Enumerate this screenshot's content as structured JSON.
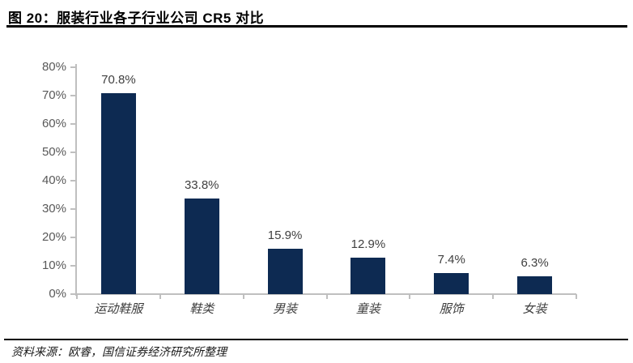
{
  "header": {
    "title": "图 20：服装行业各子行业公司 CR5 对比"
  },
  "footer": {
    "source": "资料来源：欧睿，国信证券经济研究所整理"
  },
  "chart_data": {
    "type": "bar",
    "title": "服装行业各子行业公司 CR5 对比",
    "categories": [
      "运动鞋服",
      "鞋类",
      "男装",
      "童装",
      "服饰",
      "女装"
    ],
    "values": [
      70.8,
      33.8,
      15.9,
      12.9,
      7.4,
      6.3
    ],
    "value_labels": [
      "70.8%",
      "33.8%",
      "15.9%",
      "12.9%",
      "7.4%",
      "6.3%"
    ],
    "xlabel": "",
    "ylabel": "",
    "ylim": [
      0,
      80
    ],
    "y_ticks": [
      "0%",
      "10%",
      "20%",
      "30%",
      "40%",
      "50%",
      "60%",
      "70%",
      "80%"
    ],
    "grid": false,
    "legend": "none",
    "bar_color": "#0d2a52",
    "axis_color": "#bfbfbf",
    "tick_label_color": "#595959",
    "data_label_color": "#404040"
  }
}
